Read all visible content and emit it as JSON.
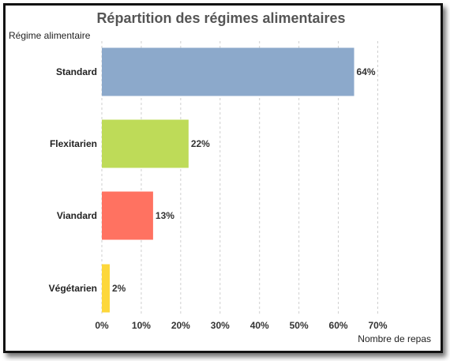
{
  "chart_data": {
    "type": "bar",
    "orientation": "horizontal",
    "title": "Répartition des régimes alimentaires",
    "ylabel": "Régime alimentaire",
    "xlabel": "Nombre de repas",
    "categories": [
      "Standard",
      "Flexitarien",
      "Viandard",
      "Végétarien"
    ],
    "values": [
      64,
      22,
      13,
      2
    ],
    "value_labels": [
      "64%",
      "22%",
      "13%",
      "2%"
    ],
    "colors": [
      "#8ca9cb",
      "#bedb58",
      "#ff7261",
      "#fdd73b"
    ],
    "xlim": [
      0,
      70
    ],
    "xticks": [
      0,
      10,
      20,
      30,
      40,
      50,
      60,
      70
    ],
    "xtick_labels": [
      "0%",
      "10%",
      "20%",
      "30%",
      "40%",
      "50%",
      "60%",
      "70%"
    ],
    "grid": "vertical dashed",
    "legend": "none"
  }
}
